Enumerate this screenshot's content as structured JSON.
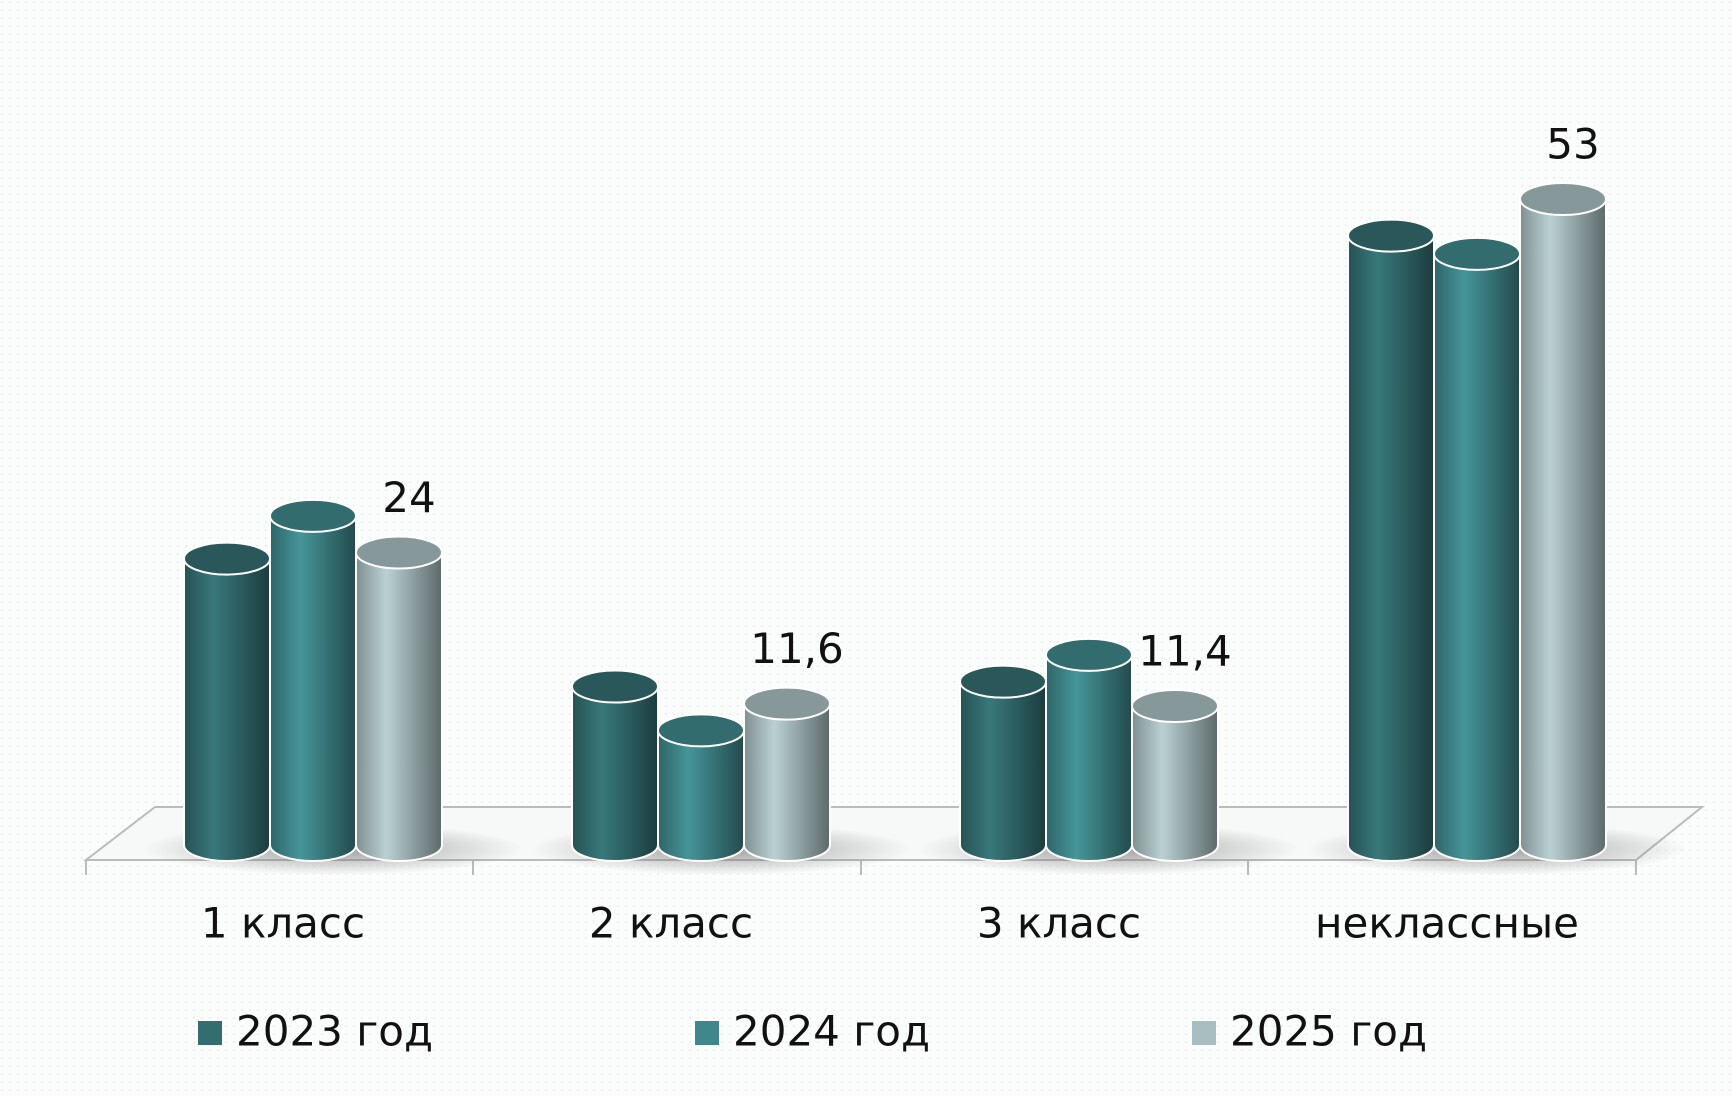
{
  "chart_data": {
    "type": "bar3d",
    "categories": [
      "1 класс",
      "2 класс",
      "3 класс",
      "неклассные"
    ],
    "series": [
      {
        "name": "2023 год",
        "color": "#336d70",
        "values": [
          23.5,
          13,
          13.4,
          50
        ]
      },
      {
        "name": "2024 год",
        "color": "#3f878b",
        "values": [
          27,
          9.4,
          15.6,
          48.5
        ]
      },
      {
        "name": "2025 год",
        "color": "#a9bec1",
        "values": [
          24,
          11.6,
          11.4,
          53
        ],
        "value_labels": [
          "24",
          "11,6",
          "11,4",
          "53"
        ]
      }
    ],
    "legend": "bottom"
  }
}
